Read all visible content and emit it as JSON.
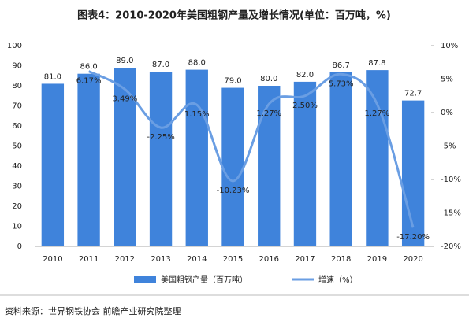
{
  "chart_data": {
    "type": "bar_line",
    "title": "图表4：2010-2020年美国粗钢产量及增长情况(单位：百万吨，%)",
    "source": "资料来源：世界钢铁协会 前瞻产业研究院整理",
    "categories": [
      "2010",
      "2011",
      "2012",
      "2013",
      "2014",
      "2015",
      "2016",
      "2017",
      "2018",
      "2019",
      "2020"
    ],
    "series": [
      {
        "name": "美国粗钢产量（百万吨）",
        "type": "bar",
        "color": "#3f83db",
        "values": [
          81.0,
          86.0,
          89.0,
          87.0,
          88.0,
          79.0,
          80.0,
          82.0,
          86.7,
          87.8,
          72.7
        ],
        "value_labels": [
          "81.0",
          "86.0",
          "89.0",
          "87.0",
          "88.0",
          "79.0",
          "80.0",
          "82.0",
          "86.7",
          "87.8",
          "72.7"
        ]
      },
      {
        "name": "增速（%）",
        "type": "line",
        "axis": "y2",
        "color": "#6a9ee3",
        "values": [
          null,
          6.17,
          3.49,
          -2.25,
          1.15,
          -10.23,
          1.27,
          2.5,
          5.73,
          1.27,
          -17.2
        ],
        "value_labels": [
          null,
          "6.17%",
          "3.49%",
          "-2.25%",
          "1.15%",
          "-10.23%",
          "1.27%",
          "2.50%",
          "5.73%",
          "1.27%",
          "-17.20%"
        ]
      }
    ],
    "ylim": [
      0,
      100
    ],
    "yticks": [
      0,
      10,
      20,
      30,
      40,
      50,
      60,
      70,
      80,
      90,
      100
    ],
    "y2lim": [
      -20,
      10
    ],
    "y2ticks": [
      {
        "value": -20,
        "label": "-20%"
      },
      {
        "value": -15,
        "label": "-15%"
      },
      {
        "value": -10,
        "label": "-10%"
      },
      {
        "value": -5,
        "label": "-5%"
      },
      {
        "value": 0,
        "label": "0%"
      },
      {
        "value": 5,
        "label": "5%"
      },
      {
        "value": 10,
        "label": "10%"
      }
    ]
  }
}
